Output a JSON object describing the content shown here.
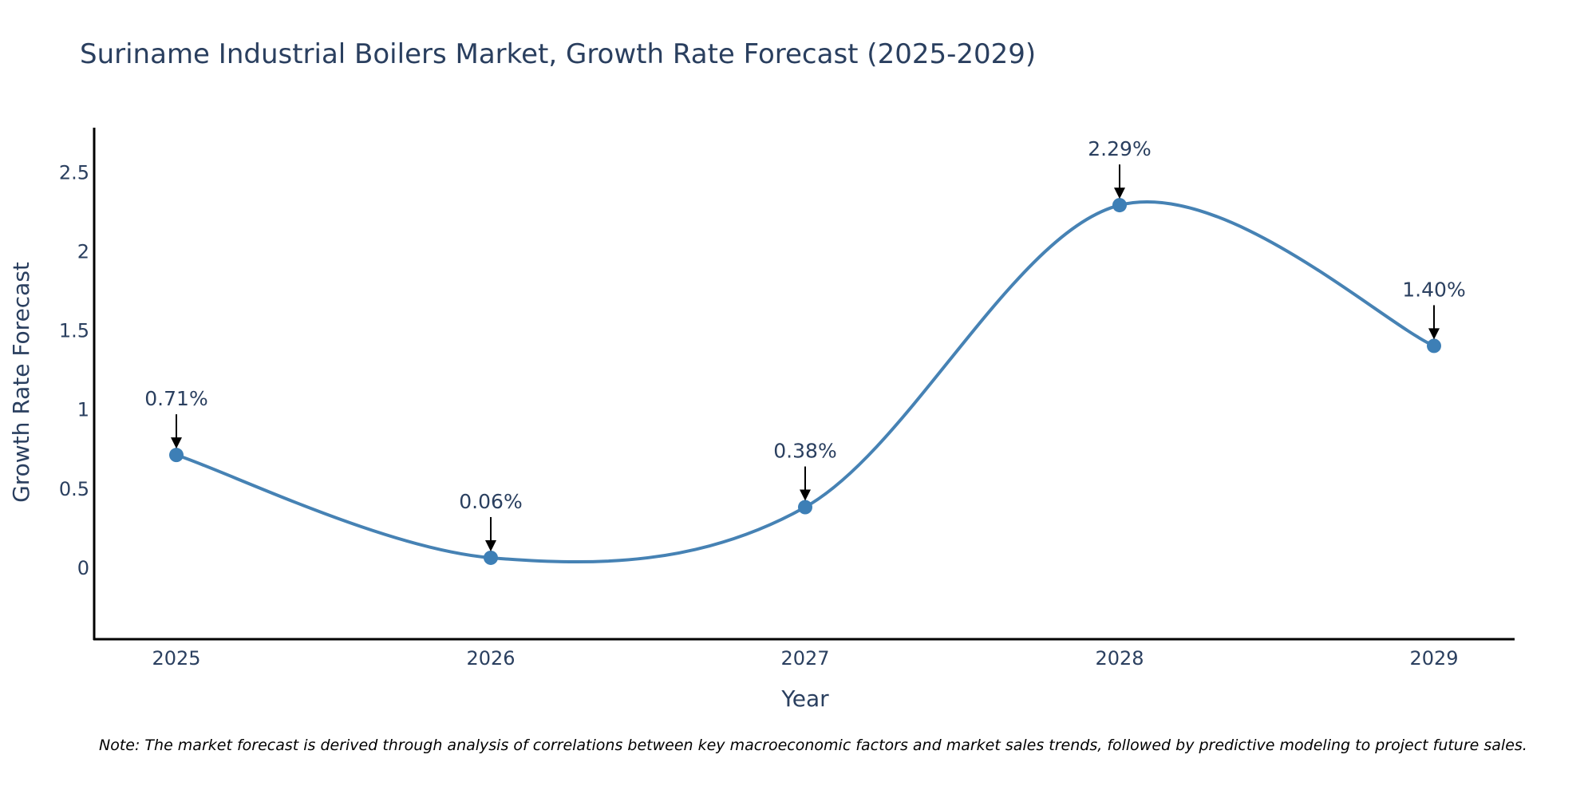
{
  "colors": {
    "series": "#4682b4",
    "point": "#3d7fb6",
    "text": "#2a3f5f",
    "axis": "#000000",
    "arrow": "#000000"
  },
  "chart_data": {
    "type": "line",
    "title": "Suriname Industrial Boilers Market, Growth Rate Forecast (2025-2029)",
    "xlabel": "Year",
    "ylabel": "Growth Rate Forecast",
    "categories": [
      "2025",
      "2026",
      "2027",
      "2028",
      "2029"
    ],
    "series": [
      {
        "name": "Growth Rate Forecast",
        "values": [
          0.71,
          0.06,
          0.38,
          2.29,
          1.4
        ],
        "labels": [
          "0.71%",
          "0.06%",
          "0.38%",
          "2.29%",
          "1.40%"
        ]
      }
    ],
    "ylim": [
      -0.45,
      2.78
    ],
    "yticks": [
      0,
      0.5,
      1,
      1.5,
      2,
      2.5
    ],
    "ytick_labels": [
      "0",
      "0.5",
      "1",
      "1.5",
      "2",
      "2.5"
    ],
    "line_shape": "spline",
    "grid": false,
    "note": "Note: The market forecast is derived through analysis of correlations between key macroeconomic factors and market sales trends, followed by predictive modeling to project future sales."
  }
}
